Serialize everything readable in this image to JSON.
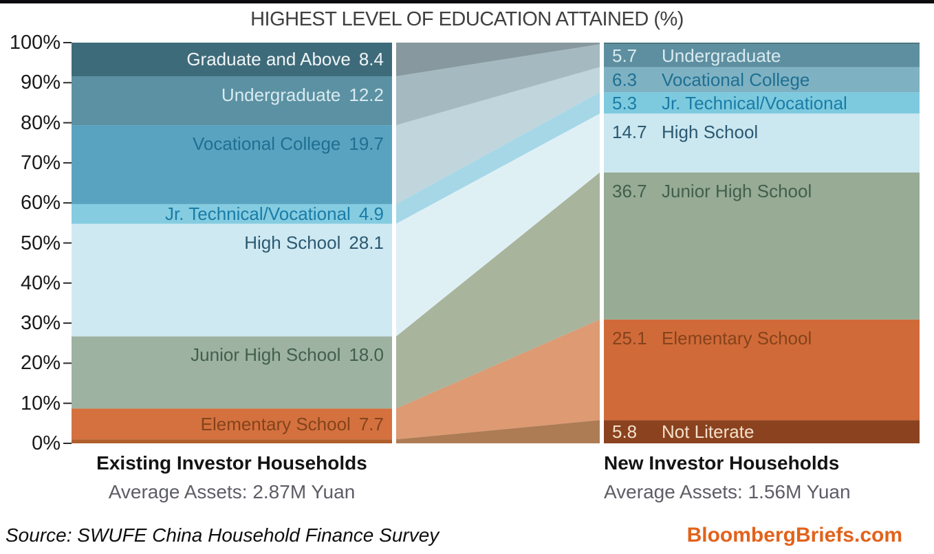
{
  "title": "HIGHEST LEVEL OF EDUCATION ATTAINED (%)",
  "colors": {
    "top_strip": "#0b0b10",
    "title_text": "#3f3f3f",
    "axis_text": "#1a1a1a",
    "subtitle_text": "#5d5d66",
    "brand": "#e2621a"
  },
  "y_axis": {
    "tick_labels": [
      "100%",
      "90%",
      "80%",
      "70%",
      "60%",
      "50%",
      "40%",
      "30%",
      "20%",
      "10%",
      "0%"
    ]
  },
  "columns": {
    "left": {
      "title": "Existing Investor Households",
      "subtitle": "Average Assets: 2.87M Yuan"
    },
    "right": {
      "title": "New Investor Households",
      "subtitle": "Average Assets: 1.56M Yuan"
    }
  },
  "footer": {
    "source": "Source: SWUFE China Household Finance Survey",
    "brand": "BloombergBriefs.com"
  },
  "chart_data": {
    "type": "area",
    "subtype": "100-percent-stacked-flow",
    "title": "HIGHEST LEVEL OF EDUCATION ATTAINED (%)",
    "categories": [
      "Existing Investor Households",
      "New Investor Households"
    ],
    "category_subtitles": [
      "Average Assets: 2.87M Yuan",
      "Average Assets: 1.56M Yuan"
    ],
    "ylim": [
      0,
      100
    ],
    "y_ticks_percent": [
      0,
      10,
      20,
      30,
      40,
      50,
      60,
      70,
      80,
      90,
      100
    ],
    "grid": false,
    "legend": "labels-inside-bands",
    "series_bottom_to_top": [
      {
        "name": "Not Literate",
        "values": [
          1.0,
          5.8
        ],
        "show_label": [
          false,
          true
        ],
        "color_left": "#b05e2c",
        "color_right": "#8b421f",
        "flow_color": "#ad7c55",
        "label_color": "#f3e1cb"
      },
      {
        "name": "Elementary School",
        "values": [
          7.7,
          25.1
        ],
        "show_label": [
          true,
          true
        ],
        "color_left": "#d4713f",
        "color_right": "#d16a39",
        "flow_color": "#dd9a73",
        "label_color": "#84431b"
      },
      {
        "name": "Junior High School",
        "values": [
          18.0,
          36.7
        ],
        "show_label": [
          true,
          true
        ],
        "color_left": "#9db2a1",
        "color_right": "#97ab95",
        "flow_color": "#a9b49c",
        "label_color": "#415f4c"
      },
      {
        "name": "High School",
        "values": [
          28.1,
          14.7
        ],
        "show_label": [
          true,
          true
        ],
        "color_left": "#cfe9f2",
        "color_right": "#cbe7ef",
        "flow_color": "#dff0f5",
        "label_color": "#2b5972"
      },
      {
        "name": "Jr. Technical/Vocational",
        "values": [
          4.9,
          5.3
        ],
        "show_label": [
          true,
          true
        ],
        "color_left": "#85cce1",
        "color_right": "#7dcadf",
        "flow_color": "#a5d7e7",
        "label_color": "#1a7ca6"
      },
      {
        "name": "Vocational College",
        "values": [
          19.7,
          6.3
        ],
        "show_label": [
          true,
          true
        ],
        "color_left": "#5aa3c0",
        "color_right": "#7eb2c3",
        "flow_color": "#c0d6dc",
        "label_color": "#1f6f92"
      },
      {
        "name": "Undergraduate",
        "values": [
          12.2,
          5.7
        ],
        "show_label": [
          true,
          true
        ],
        "color_left": "#5b91a3",
        "color_right": "#5d8fa0",
        "flow_color": "#a4bac0",
        "label_color": "#d9eaf0"
      },
      {
        "name": "Graduate and Above",
        "values": [
          8.4,
          0.4
        ],
        "show_label": [
          true,
          false
        ],
        "color_left": "#3e6b7a",
        "color_right": "#47767f",
        "flow_color": "#87989e",
        "label_color": "#f1f5f6"
      }
    ]
  }
}
